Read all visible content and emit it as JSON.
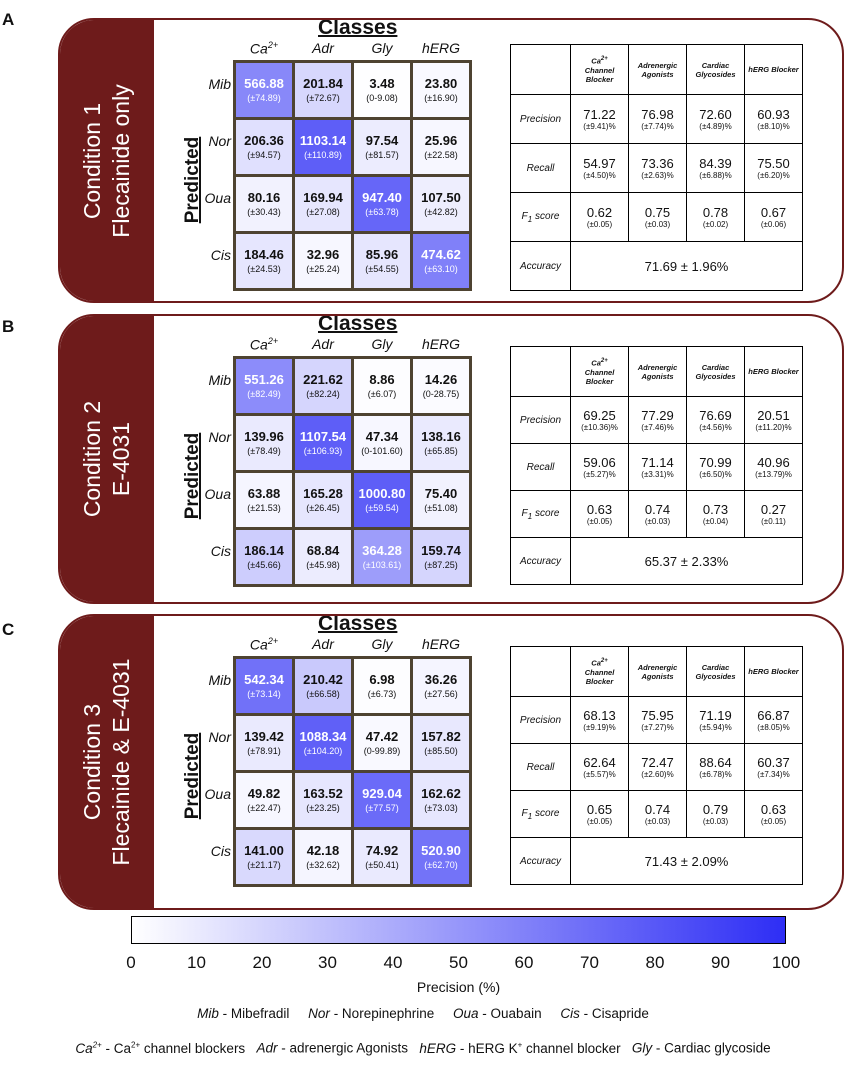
{
  "chart_data": {
    "type": "heatmap",
    "columns": [
      "Ca2+",
      "Adr",
      "Gly",
      "hERG"
    ],
    "rows": [
      "Mib",
      "Nor",
      "Oua",
      "Cis"
    ],
    "x_title": "Classes",
    "y_title": "Predicted",
    "colorbar": {
      "label": "Precision (%)",
      "ticks": [
        "0",
        "10",
        "20",
        "30",
        "40",
        "50",
        "60",
        "70",
        "80",
        "90",
        "100"
      ],
      "range": [
        0,
        100
      ],
      "color_low": "#ffffff",
      "color_high": "#2e2ef5"
    },
    "metrics_headers": [
      {
        "pre": "Ca",
        "sup": "2+",
        "rest": "Channel Blocker"
      },
      {
        "pre": "Adrenergic Agonists",
        "sup": "",
        "rest": ""
      },
      {
        "pre": "Cardiac Glycosides",
        "sup": "",
        "rest": ""
      },
      {
        "pre": "hERG Blocker",
        "sup": "",
        "rest": ""
      }
    ],
    "metric_labels": {
      "precision": "Precision",
      "recall": "Recall",
      "f1": "F",
      "f1_sub": "1",
      "f1_rest": " score",
      "accuracy": "Accuracy"
    },
    "panels": [
      {
        "letter": "A",
        "title_line1": "Condition 1",
        "title_line2": "Flecainide only",
        "matrix": [
          [
            {
              "v": "566.88",
              "e": "(±74.89)",
              "p": 57
            },
            {
              "v": "201.84",
              "e": "(±72.67)",
              "p": 19
            },
            {
              "v": "3.48",
              "e": "(0-9.08)",
              "p": 0.3
            },
            {
              "v": "23.80",
              "e": "(±16.90)",
              "p": 3
            }
          ],
          [
            {
              "v": "206.36",
              "e": "(±94.57)",
              "p": 15
            },
            {
              "v": "1103.14",
              "e": "(±110.89)",
              "p": 77
            },
            {
              "v": "97.54",
              "e": "(±81.57)",
              "p": 9
            },
            {
              "v": "25.96",
              "e": "(±22.58)",
              "p": 4
            }
          ],
          [
            {
              "v": "80.16",
              "e": "(±30.43)",
              "p": 6
            },
            {
              "v": "169.94",
              "e": "(±27.08)",
              "p": 12
            },
            {
              "v": "947.40",
              "e": "(±63.78)",
              "p": 73
            },
            {
              "v": "107.50",
              "e": "(±42.82)",
              "p": 8
            }
          ],
          [
            {
              "v": "184.46",
              "e": "(±24.53)",
              "p": 12
            },
            {
              "v": "32.96",
              "e": "(±25.24)",
              "p": 4
            },
            {
              "v": "85.96",
              "e": "(±54.55)",
              "p": 12
            },
            {
              "v": "474.62",
              "e": "(±63.10)",
              "p": 61
            }
          ]
        ],
        "metrics": {
          "precision": [
            {
              "v": "71.22",
              "e": "(±9.41)%"
            },
            {
              "v": "76.98",
              "e": "(±7.74)%"
            },
            {
              "v": "72.60",
              "e": "(±4.89)%"
            },
            {
              "v": "60.93",
              "e": "(±8.10)%"
            }
          ],
          "recall": [
            {
              "v": "54.97",
              "e": "(±4.50)%"
            },
            {
              "v": "73.36",
              "e": "(±2.63)%"
            },
            {
              "v": "84.39",
              "e": "(±6.88)%"
            },
            {
              "v": "75.50",
              "e": "(±6.20)%"
            }
          ],
          "f1": [
            {
              "v": "0.62",
              "e": "(±0.05)"
            },
            {
              "v": "0.75",
              "e": "(±0.03)"
            },
            {
              "v": "0.78",
              "e": "(±0.02)"
            },
            {
              "v": "0.67",
              "e": "(±0.06)"
            }
          ],
          "accuracy": "71.69 ± 1.96%"
        }
      },
      {
        "letter": "B",
        "title_line1": "Condition 2",
        "title_line2": "E-4031",
        "matrix": [
          [
            {
              "v": "551.26",
              "e": "(±82.49)",
              "p": 55
            },
            {
              "v": "221.62",
              "e": "(±82.24)",
              "p": 20
            },
            {
              "v": "8.86",
              "e": "(±6.07)",
              "p": 1
            },
            {
              "v": "14.26",
              "e": "(0-28.75)",
              "p": 2
            }
          ],
          [
            {
              "v": "139.96",
              "e": "(±78.49)",
              "p": 10
            },
            {
              "v": "1107.54",
              "e": "(±106.93)",
              "p": 77
            },
            {
              "v": "47.34",
              "e": "(0-101.60)",
              "p": 4
            },
            {
              "v": "138.16",
              "e": "(±65.85)",
              "p": 10
            }
          ],
          [
            {
              "v": "63.88",
              "e": "(±21.53)",
              "p": 5
            },
            {
              "v": "165.28",
              "e": "(±26.45)",
              "p": 12
            },
            {
              "v": "1000.80",
              "e": "(±59.54)",
              "p": 77
            },
            {
              "v": "75.40",
              "e": "(±51.08)",
              "p": 6
            }
          ],
          [
            {
              "v": "186.14",
              "e": "(±45.66)",
              "p": 24
            },
            {
              "v": "68.84",
              "e": "(±45.98)",
              "p": 9
            },
            {
              "v": "364.28",
              "e": "(±103.61)",
              "p": 47
            },
            {
              "v": "159.74",
              "e": "(±87.25)",
              "p": 20
            }
          ]
        ],
        "metrics": {
          "precision": [
            {
              "v": "69.25",
              "e": "(±10.36)%"
            },
            {
              "v": "77.29",
              "e": "(±7.46)%"
            },
            {
              "v": "76.69",
              "e": "(±4.56)%"
            },
            {
              "v": "20.51",
              "e": "(±11.20)%"
            }
          ],
          "recall": [
            {
              "v": "59.06",
              "e": "(±5.27)%"
            },
            {
              "v": "71.14",
              "e": "(±3.31)%"
            },
            {
              "v": "70.99",
              "e": "(±6.50)%"
            },
            {
              "v": "40.96",
              "e": "(±13.79)%"
            }
          ],
          "f1": [
            {
              "v": "0.63",
              "e": "(±0.05)"
            },
            {
              "v": "0.74",
              "e": "(±0.03)"
            },
            {
              "v": "0.73",
              "e": "(±0.04)"
            },
            {
              "v": "0.27",
              "e": "(±0.11)"
            }
          ],
          "accuracy": "65.37 ± 2.33%"
        }
      },
      {
        "letter": "C",
        "title_line1": "Condition 3",
        "title_line2": "Flecainide & E-4031",
        "matrix": [
          [
            {
              "v": "542.34",
              "e": "(±73.14)",
              "p": 68
            },
            {
              "v": "210.42",
              "e": "(±66.58)",
              "p": 26
            },
            {
              "v": "6.98",
              "e": "(±6.73)",
              "p": 1
            },
            {
              "v": "36.26",
              "e": "(±27.56)",
              "p": 5
            }
          ],
          [
            {
              "v": "139.42",
              "e": "(±78.91)",
              "p": 10
            },
            {
              "v": "1088.34",
              "e": "(±104.20)",
              "p": 76
            },
            {
              "v": "47.42",
              "e": "(0-99.89)",
              "p": 3
            },
            {
              "v": "157.82",
              "e": "(±85.50)",
              "p": 11
            }
          ],
          [
            {
              "v": "49.82",
              "e": "(±22.47)",
              "p": 4
            },
            {
              "v": "163.52",
              "e": "(±23.25)",
              "p": 12
            },
            {
              "v": "929.04",
              "e": "(±77.57)",
              "p": 71
            },
            {
              "v": "162.62",
              "e": "(±73.03)",
              "p": 12
            }
          ],
          [
            {
              "v": "141.00",
              "e": "(±21.17)",
              "p": 18
            },
            {
              "v": "42.18",
              "e": "(±32.62)",
              "p": 5
            },
            {
              "v": "74.92",
              "e": "(±50.41)",
              "p": 10
            },
            {
              "v": "520.90",
              "e": "(±62.70)",
              "p": 67
            }
          ]
        ],
        "metrics": {
          "precision": [
            {
              "v": "68.13",
              "e": "(±9.19)%"
            },
            {
              "v": "75.95",
              "e": "(±7.27)%"
            },
            {
              "v": "71.19",
              "e": "(±5.94)%"
            },
            {
              "v": "66.87",
              "e": "(±8.05)%"
            }
          ],
          "recall": [
            {
              "v": "62.64",
              "e": "(±5.57)%"
            },
            {
              "v": "72.47",
              "e": "(±2.60)%"
            },
            {
              "v": "88.64",
              "e": "(±6.78)%"
            },
            {
              "v": "60.37",
              "e": "(±7.34)%"
            }
          ],
          "f1": [
            {
              "v": "0.65",
              "e": "(±0.05)"
            },
            {
              "v": "0.74",
              "e": "(±0.03)"
            },
            {
              "v": "0.79",
              "e": "(±0.03)"
            },
            {
              "v": "0.63",
              "e": "(±0.05)"
            }
          ],
          "accuracy": "71.43 ± 2.09%"
        }
      }
    ]
  },
  "legend": {
    "line1": "Mib - Mibefradil     Nor - Norepinephrine     Oua - Ouabain     Cis - Cisapride",
    "line2": "Ca2+ - Ca2+ channel blockers   Adr - adrenergic Agonists   hERG - hERG K+ channel blocker   Gly - Cardiac glycoside"
  }
}
